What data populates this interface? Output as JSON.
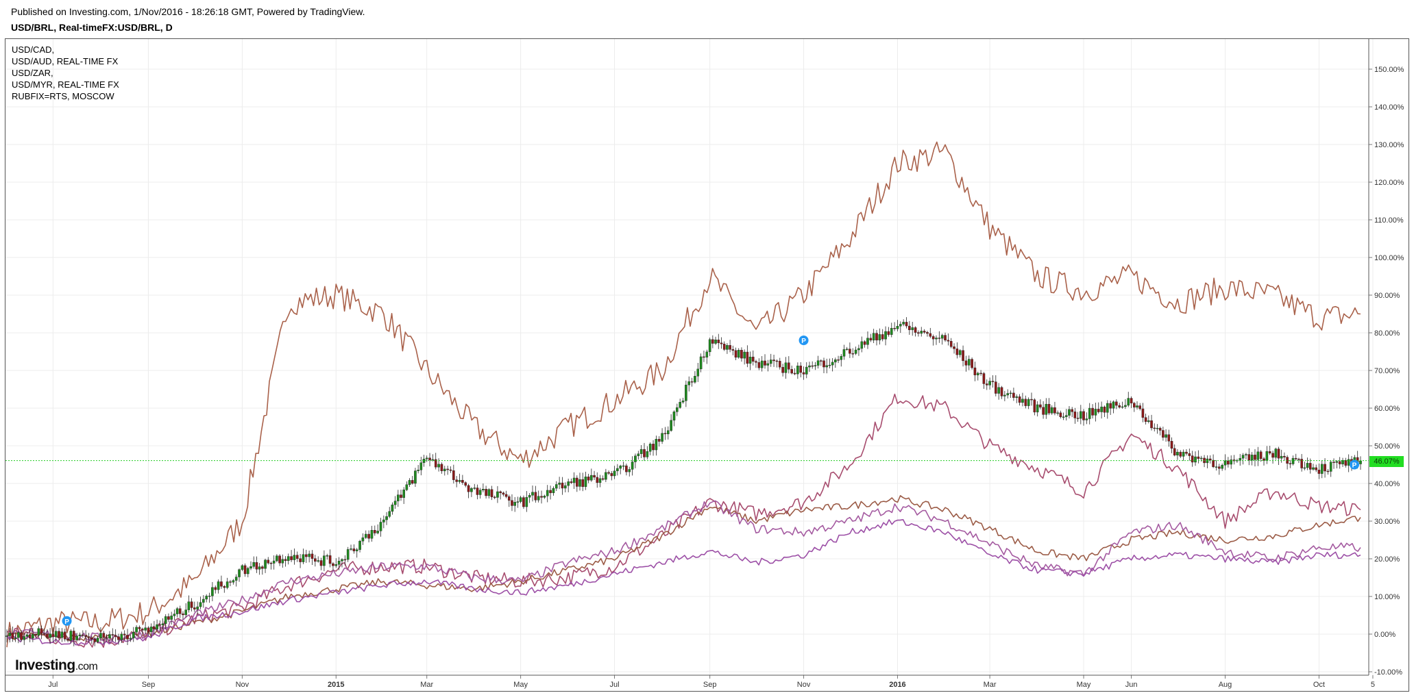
{
  "header": {
    "published": "Published on Investing.com, 1/Nov/2016 - 18:26:18 GMT, Powered by TradingView.",
    "symbol": "USD/BRL, Real-timeFX:USD/BRL, D"
  },
  "legend": [
    "USD/CAD,",
    "USD/AUD, REAL-TIME FX",
    "USD/ZAR,",
    "USD/MYR, REAL-TIME FX",
    "RUBFIX=RTS, MOSCOW"
  ],
  "logo": {
    "brand": "Investing",
    "suffix": ".com"
  },
  "price_tag": "46.07%",
  "colors": {
    "rub": "#a9614a",
    "zar": "#a74c6e",
    "cad": "#9b5b46",
    "aud": "#a45aa0",
    "myr": "#9c4fa6",
    "candle_up": "#1f8a1f",
    "candle_down": "#8b1a1a",
    "current_line": "#22cc22",
    "marker": "#2196f3"
  },
  "chart_data": {
    "type": "line",
    "x": [
      "2014-06-01",
      "2014-07-01",
      "2014-08-01",
      "2014-09-01",
      "2014-10-01",
      "2014-11-01",
      "2014-12-01",
      "2015-01-01",
      "2015-02-01",
      "2015-03-01",
      "2015-04-01",
      "2015-05-01",
      "2015-06-01",
      "2015-07-01",
      "2015-08-01",
      "2015-09-01",
      "2015-10-01",
      "2015-11-01",
      "2015-12-01",
      "2016-01-01",
      "2016-02-01",
      "2016-03-01",
      "2016-04-01",
      "2016-05-01",
      "2016-06-01",
      "2016-07-01",
      "2016-08-01",
      "2016-09-01",
      "2016-10-01",
      "2016-10-28"
    ],
    "x_ticks": [
      "Jul",
      "Sep",
      "Nov",
      "2015",
      "Mar",
      "May",
      "Jul",
      "Sep",
      "Nov",
      "2016",
      "Mar",
      "May",
      "Jun",
      "Aug",
      "Oct",
      "5"
    ],
    "y_ticks": [
      "150.00%",
      "140.00%",
      "130.00%",
      "120.00%",
      "110.00%",
      "100.00%",
      "90.00%",
      "80.00%",
      "70.00%",
      "60.00%",
      "50.00%",
      "40.00%",
      "30.00%",
      "20.00%",
      "10.00%",
      "0.00%",
      "-10.00%"
    ],
    "ylim": [
      -11,
      155
    ],
    "ylabel": "",
    "xlabel": "",
    "grid": true,
    "current_value": 46.07,
    "series": [
      {
        "name": "USD/BRL",
        "kind": "candlestick",
        "values": [
          0,
          0,
          -1,
          1,
          8,
          17,
          21,
          19,
          30,
          47,
          38,
          35,
          40,
          42,
          52,
          78,
          72,
          70,
          75,
          82,
          78,
          66,
          60,
          58,
          62,
          48,
          45,
          48,
          44,
          46
        ]
      },
      {
        "name": "RUBFIX=RTS, MOSCOW",
        "values": [
          0,
          3,
          3,
          6,
          14,
          30,
          88,
          90,
          85,
          70,
          55,
          46,
          55,
          62,
          70,
          95,
          80,
          90,
          105,
          125,
          128,
          108,
          95,
          91,
          95,
          88,
          92,
          90,
          84,
          85
        ]
      },
      {
        "name": "USD/ZAR,",
        "values": [
          1,
          -1,
          -2,
          0,
          4,
          7,
          13,
          17,
          18,
          18,
          15,
          14,
          15,
          18,
          26,
          35,
          32,
          35,
          45,
          63,
          60,
          50,
          44,
          38,
          53,
          44,
          30,
          38,
          34,
          33
        ]
      },
      {
        "name": "USD/CAD,",
        "values": [
          0,
          -1,
          -1,
          0,
          3,
          6,
          10,
          12,
          14,
          13,
          12,
          14,
          17,
          20,
          26,
          34,
          30,
          33,
          34,
          36,
          33,
          28,
          22,
          20,
          25,
          27,
          25,
          26,
          29,
          31
        ]
      },
      {
        "name": "USD/AUD, REAL-TIME FX",
        "values": [
          0,
          0,
          -1,
          0,
          5,
          9,
          14,
          16,
          18,
          18,
          15,
          14,
          19,
          22,
          28,
          35,
          28,
          27,
          30,
          34,
          30,
          24,
          18,
          16,
          27,
          29,
          22,
          20,
          23,
          23
        ]
      },
      {
        "name": "USD/MYR, REAL-TIME FX",
        "values": [
          -1,
          -2,
          -2,
          -1,
          4,
          6,
          9,
          11,
          13,
          14,
          12,
          11,
          13,
          16,
          19,
          22,
          19,
          21,
          27,
          30,
          27,
          21,
          17,
          16,
          20,
          21,
          20,
          19,
          21,
          21
        ]
      }
    ]
  }
}
